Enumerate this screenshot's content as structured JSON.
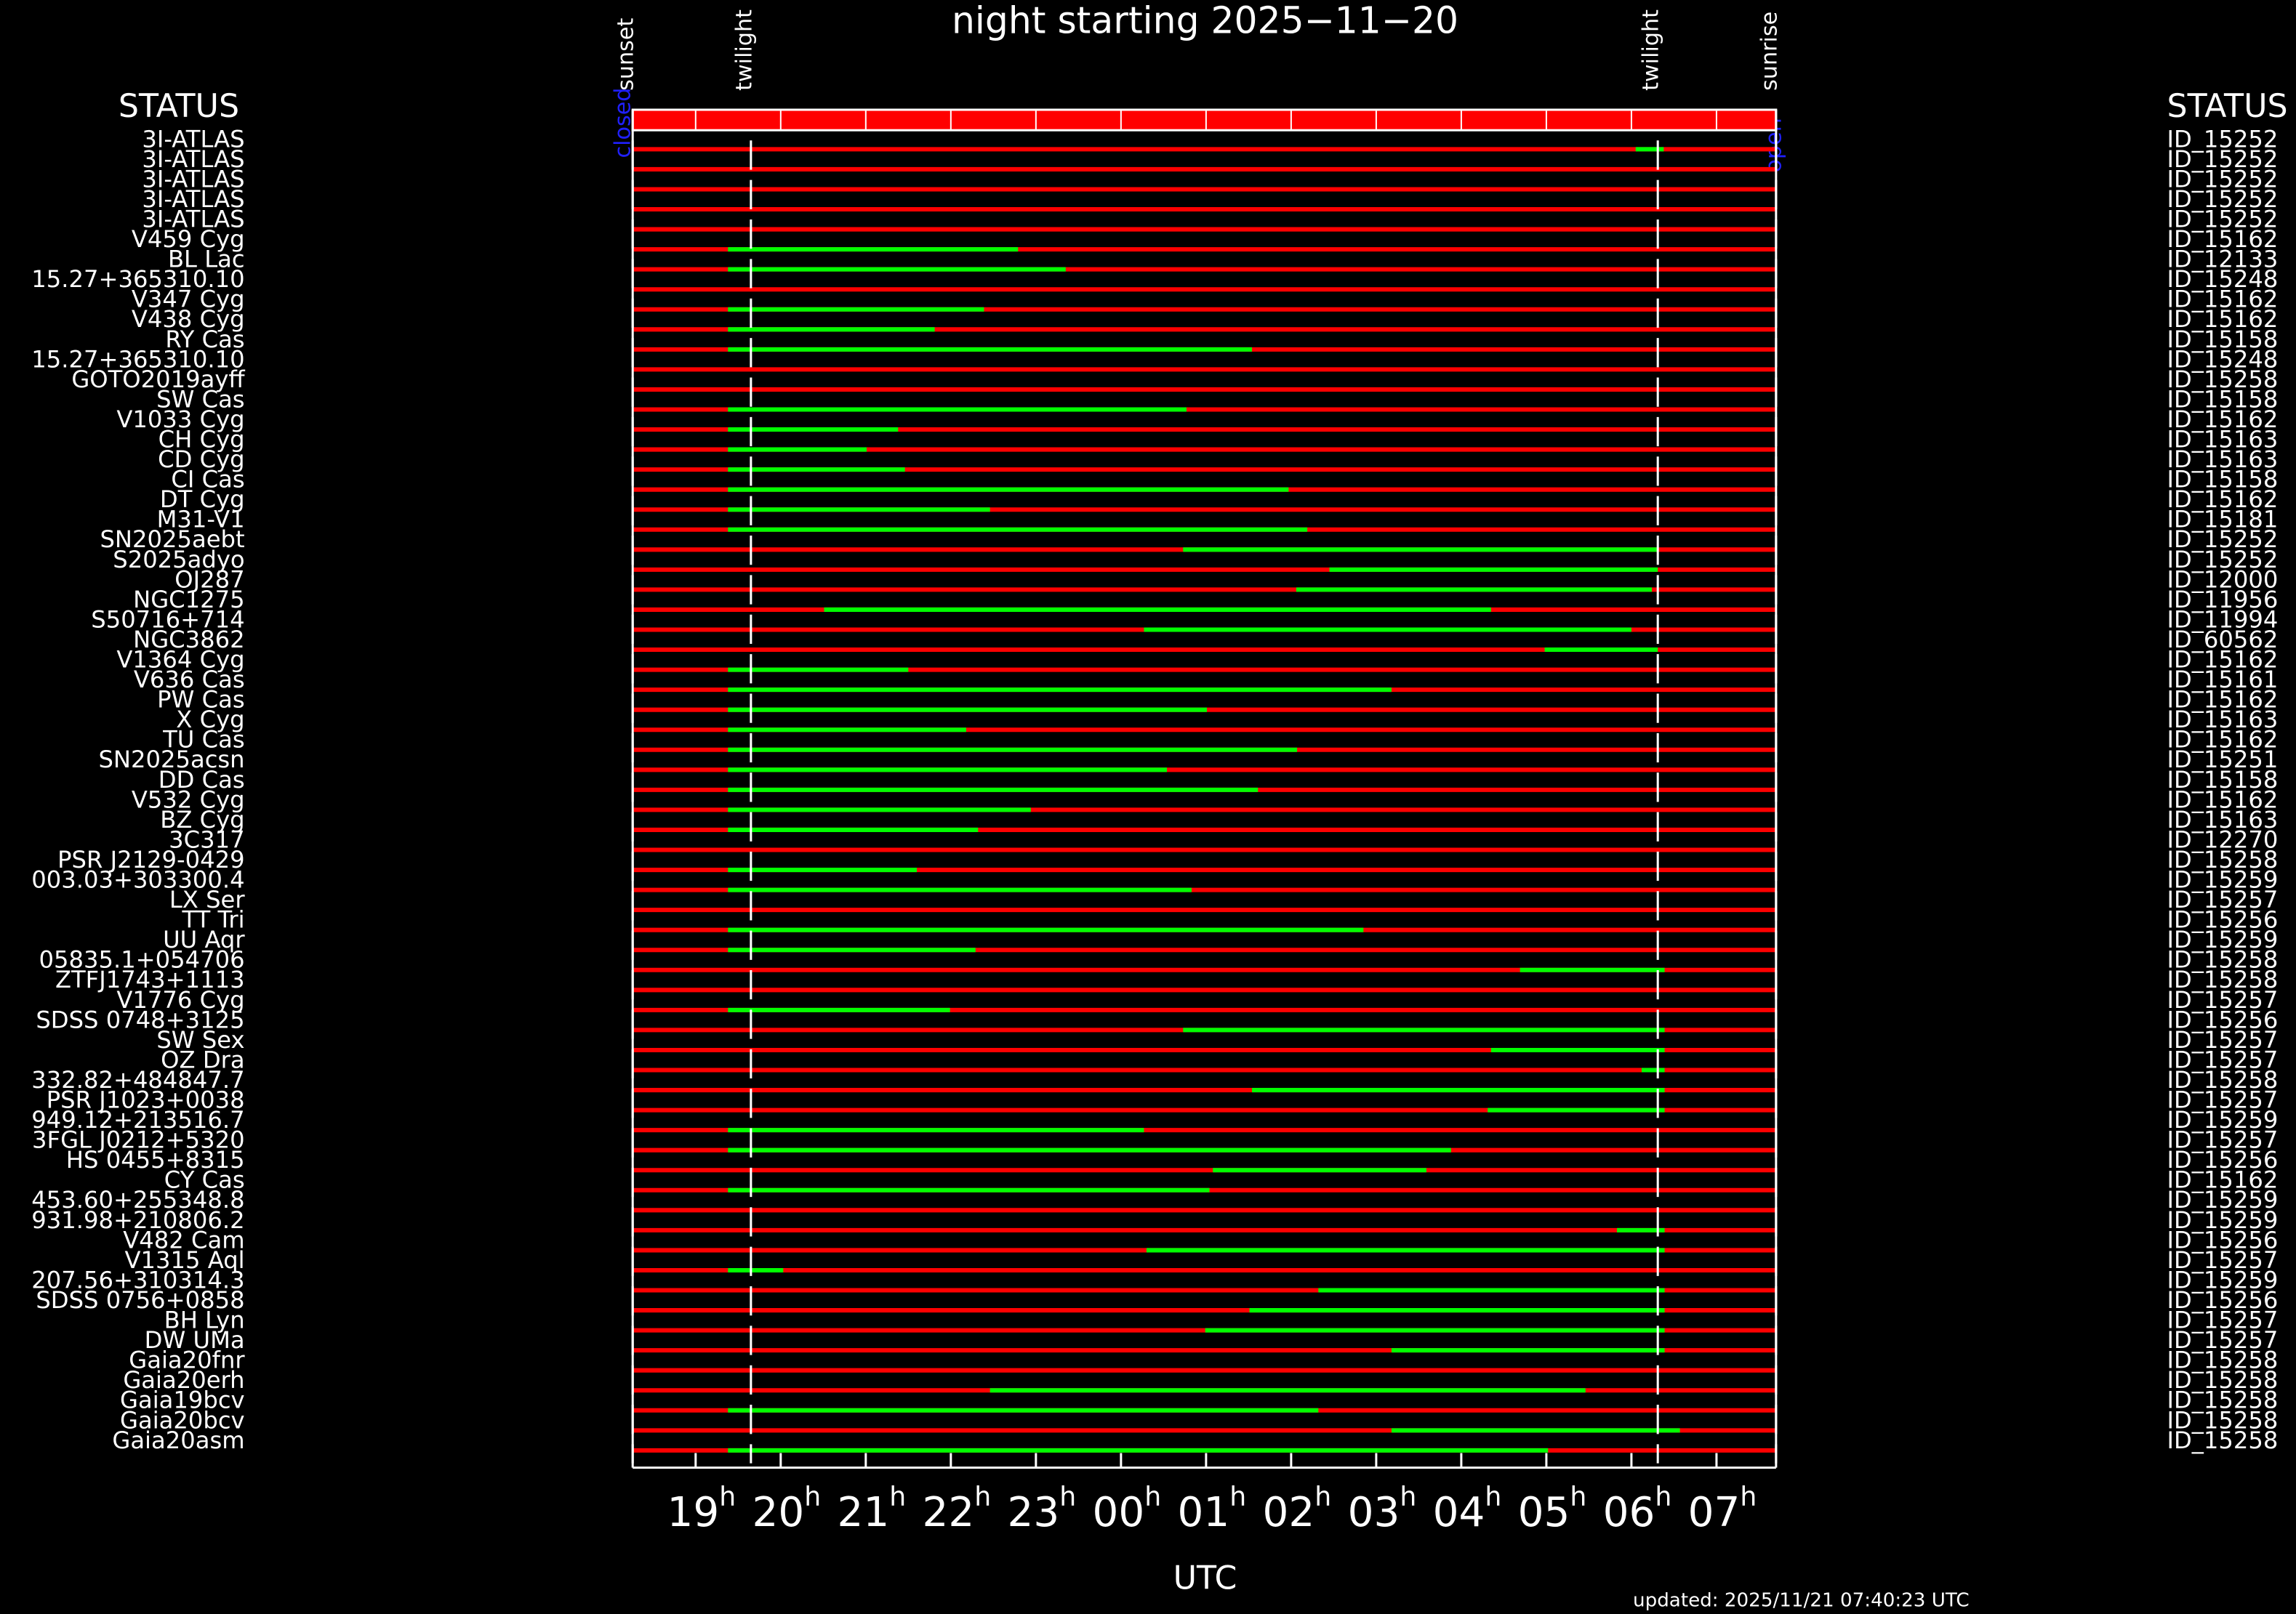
{
  "chart_data": {
    "type": "timeline",
    "title": "night starting 2025−11−20",
    "x_label": "UTC",
    "x_unit": "h",
    "status_header_left": "STATUS",
    "status_header_right": "STATUS",
    "status_start": "closed",
    "status_end": "open",
    "updated": "updated: 2025/11/21 07:40:23 UTC",
    "xlim": [
      18.26,
      31.7
    ],
    "xticks": [
      19,
      20,
      21,
      22,
      23,
      {
        "value": 24,
        "label": "00"
      },
      {
        "value": 25,
        "label": "01"
      },
      {
        "value": 26,
        "label": "02"
      },
      {
        "value": 27,
        "label": "03"
      },
      {
        "value": 28,
        "label": "04"
      },
      {
        "value": 29,
        "label": "05"
      },
      {
        "value": 30,
        "label": "06"
      },
      {
        "value": 31,
        "label": "07"
      }
    ],
    "events": [
      {
        "label": "sunset",
        "x": 18.26
      },
      {
        "label": "twilight",
        "x": 19.65
      },
      {
        "label": "twilight",
        "x": 30.31
      },
      {
        "label": "sunrise",
        "x": 31.7
      }
    ],
    "track_color": "#ff0000",
    "window_color": "#00ff00",
    "targets": [
      {
        "name": "3I-ATLAS",
        "id": "ID_15252",
        "windows": [
          [
            30.05,
            30.38
          ]
        ]
      },
      {
        "name": "3I-ATLAS",
        "id": "ID_15252",
        "windows": []
      },
      {
        "name": "3I-ATLAS",
        "id": "ID_15252",
        "windows": []
      },
      {
        "name": "3I-ATLAS",
        "id": "ID_15252",
        "windows": []
      },
      {
        "name": "3I-ATLAS",
        "id": "ID_15252",
        "windows": []
      },
      {
        "name": "V459 Cyg",
        "id": "ID_15162",
        "windows": [
          [
            19.38,
            22.79
          ]
        ]
      },
      {
        "name": "BL Lac",
        "id": "ID_12133",
        "windows": [
          [
            19.38,
            23.35
          ]
        ]
      },
      {
        "name": "15.27+365310.10",
        "id": "ID_15248",
        "windows": []
      },
      {
        "name": "V347 Cyg",
        "id": "ID_15162",
        "windows": [
          [
            19.38,
            22.39
          ]
        ]
      },
      {
        "name": "V438 Cyg",
        "id": "ID_15162",
        "windows": [
          [
            19.38,
            21.81
          ]
        ]
      },
      {
        "name": "RY Cas",
        "id": "ID_15158",
        "windows": [
          [
            19.38,
            25.54
          ]
        ]
      },
      {
        "name": "15.27+365310.10",
        "id": "ID_15248",
        "windows": []
      },
      {
        "name": "GOTO2019ayff",
        "id": "ID_15258",
        "windows": []
      },
      {
        "name": "SW Cas",
        "id": "ID_15158",
        "windows": [
          [
            19.38,
            24.77
          ]
        ]
      },
      {
        "name": "V1033 Cyg",
        "id": "ID_15162",
        "windows": [
          [
            19.38,
            21.38
          ]
        ]
      },
      {
        "name": "CH Cyg",
        "id": "ID_15163",
        "windows": [
          [
            19.38,
            21.01
          ]
        ]
      },
      {
        "name": "CD Cyg",
        "id": "ID_15163",
        "windows": [
          [
            19.38,
            21.46
          ]
        ]
      },
      {
        "name": "CI Cas",
        "id": "ID_15158",
        "windows": [
          [
            19.38,
            25.97
          ]
        ]
      },
      {
        "name": "DT Cyg",
        "id": "ID_15162",
        "windows": [
          [
            19.38,
            22.46
          ]
        ]
      },
      {
        "name": "M31-V1",
        "id": "ID_15181",
        "windows": [
          [
            19.38,
            26.19
          ]
        ]
      },
      {
        "name": "SN2025aebt",
        "id": "ID_15252",
        "windows": [
          [
            24.73,
            30.31
          ]
        ]
      },
      {
        "name": "S2025adyo",
        "id": "ID_15252",
        "windows": [
          [
            26.45,
            30.31
          ]
        ]
      },
      {
        "name": "OJ287",
        "id": "ID_12000",
        "windows": [
          [
            26.06,
            30.24
          ]
        ]
      },
      {
        "name": "NGC1275",
        "id": "ID_11956",
        "windows": [
          [
            20.51,
            28.35
          ]
        ]
      },
      {
        "name": "S50716+714",
        "id": "ID_11994",
        "windows": [
          [
            24.27,
            30.0
          ]
        ]
      },
      {
        "name": "NGC3862",
        "id": "ID_60562",
        "windows": [
          [
            28.98,
            30.31
          ]
        ]
      },
      {
        "name": "V1364 Cyg",
        "id": "ID_15162",
        "windows": [
          [
            19.38,
            21.5
          ]
        ]
      },
      {
        "name": "V636 Cas",
        "id": "ID_15161",
        "windows": [
          [
            19.38,
            27.18
          ]
        ]
      },
      {
        "name": "PW Cas",
        "id": "ID_15162",
        "windows": [
          [
            19.38,
            25.01
          ]
        ]
      },
      {
        "name": "X Cyg",
        "id": "ID_15163",
        "windows": [
          [
            19.38,
            22.18
          ]
        ]
      },
      {
        "name": "TU Cas",
        "id": "ID_15162",
        "windows": [
          [
            19.38,
            26.07
          ]
        ]
      },
      {
        "name": "SN2025acsn",
        "id": "ID_15251",
        "windows": [
          [
            19.38,
            24.54
          ]
        ]
      },
      {
        "name": "DD Cas",
        "id": "ID_15158",
        "windows": [
          [
            19.38,
            25.61
          ]
        ]
      },
      {
        "name": "V532 Cyg",
        "id": "ID_15162",
        "windows": [
          [
            19.38,
            22.94
          ]
        ]
      },
      {
        "name": "BZ Cyg",
        "id": "ID_15163",
        "windows": [
          [
            19.38,
            22.32
          ]
        ]
      },
      {
        "name": "3C317",
        "id": "ID_12270",
        "windows": []
      },
      {
        "name": "PSR J2129-0429",
        "id": "ID_15258",
        "windows": [
          [
            19.38,
            21.6
          ]
        ]
      },
      {
        "name": "003.03+303300.4",
        "id": "ID_15259",
        "windows": [
          [
            19.38,
            24.83
          ]
        ]
      },
      {
        "name": "LX Ser",
        "id": "ID_15257",
        "windows": []
      },
      {
        "name": "TT Tri",
        "id": "ID_15256",
        "windows": [
          [
            19.38,
            26.85
          ]
        ]
      },
      {
        "name": "UU Aqr",
        "id": "ID_15259",
        "windows": [
          [
            19.38,
            22.29
          ]
        ]
      },
      {
        "name": "05835.1+054706",
        "id": "ID_15258",
        "windows": [
          [
            28.69,
            30.39
          ]
        ]
      },
      {
        "name": "ZTFJ1743+1113",
        "id": "ID_15258",
        "windows": []
      },
      {
        "name": "V1776 Cyg",
        "id": "ID_15257",
        "windows": [
          [
            19.38,
            21.99
          ]
        ]
      },
      {
        "name": "SDSS 0748+3125",
        "id": "ID_15256",
        "windows": [
          [
            24.73,
            30.39
          ]
        ]
      },
      {
        "name": "SW Sex",
        "id": "ID_15257",
        "windows": [
          [
            28.35,
            30.39
          ]
        ]
      },
      {
        "name": "OZ Dra",
        "id": "ID_15257",
        "windows": [
          [
            30.12,
            30.39
          ]
        ]
      },
      {
        "name": "332.82+484847.7",
        "id": "ID_15258",
        "windows": [
          [
            25.54,
            30.39
          ]
        ]
      },
      {
        "name": "PSR J1023+0038",
        "id": "ID_15257",
        "windows": [
          [
            28.31,
            30.39
          ]
        ]
      },
      {
        "name": "949.12+213516.7",
        "id": "ID_15259",
        "windows": [
          [
            19.38,
            24.27
          ]
        ]
      },
      {
        "name": "3FGL J0212+5320",
        "id": "ID_15257",
        "windows": [
          [
            19.38,
            27.88
          ]
        ]
      },
      {
        "name": "HS 0455+8315",
        "id": "ID_15256",
        "windows": [
          [
            25.08,
            27.59
          ]
        ]
      },
      {
        "name": "CY Cas",
        "id": "ID_15162",
        "windows": [
          [
            19.38,
            25.04
          ]
        ]
      },
      {
        "name": "453.60+255348.8",
        "id": "ID_15259",
        "windows": []
      },
      {
        "name": "931.98+210806.2",
        "id": "ID_15259",
        "windows": [
          [
            29.83,
            30.39
          ]
        ]
      },
      {
        "name": "V482 Cam",
        "id": "ID_15256",
        "windows": [
          [
            24.3,
            30.39
          ]
        ]
      },
      {
        "name": "V1315 Aql",
        "id": "ID_15257",
        "windows": [
          [
            19.38,
            20.03
          ]
        ]
      },
      {
        "name": "207.56+310314.3",
        "id": "ID_15259",
        "windows": [
          [
            26.32,
            30.39
          ]
        ]
      },
      {
        "name": "SDSS 0756+0858",
        "id": "ID_15256",
        "windows": [
          [
            25.51,
            30.39
          ]
        ]
      },
      {
        "name": "BH Lyn",
        "id": "ID_15257",
        "windows": [
          [
            24.99,
            30.39
          ]
        ]
      },
      {
        "name": "DW UMa",
        "id": "ID_15257",
        "windows": [
          [
            27.18,
            30.39
          ]
        ]
      },
      {
        "name": "Gaia20fnr",
        "id": "ID_15258",
        "windows": []
      },
      {
        "name": "Gaia20erh",
        "id": "ID_15258",
        "windows": [
          [
            22.46,
            29.46
          ]
        ]
      },
      {
        "name": "Gaia19bcv",
        "id": "ID_15258",
        "windows": [
          [
            19.38,
            26.32
          ]
        ]
      },
      {
        "name": "Gaia20bcv",
        "id": "ID_15258",
        "windows": [
          [
            27.18,
            30.57
          ]
        ]
      },
      {
        "name": "Gaia20asm",
        "id": "ID_15258",
        "windows": [
          [
            19.38,
            29.02
          ]
        ]
      }
    ]
  }
}
